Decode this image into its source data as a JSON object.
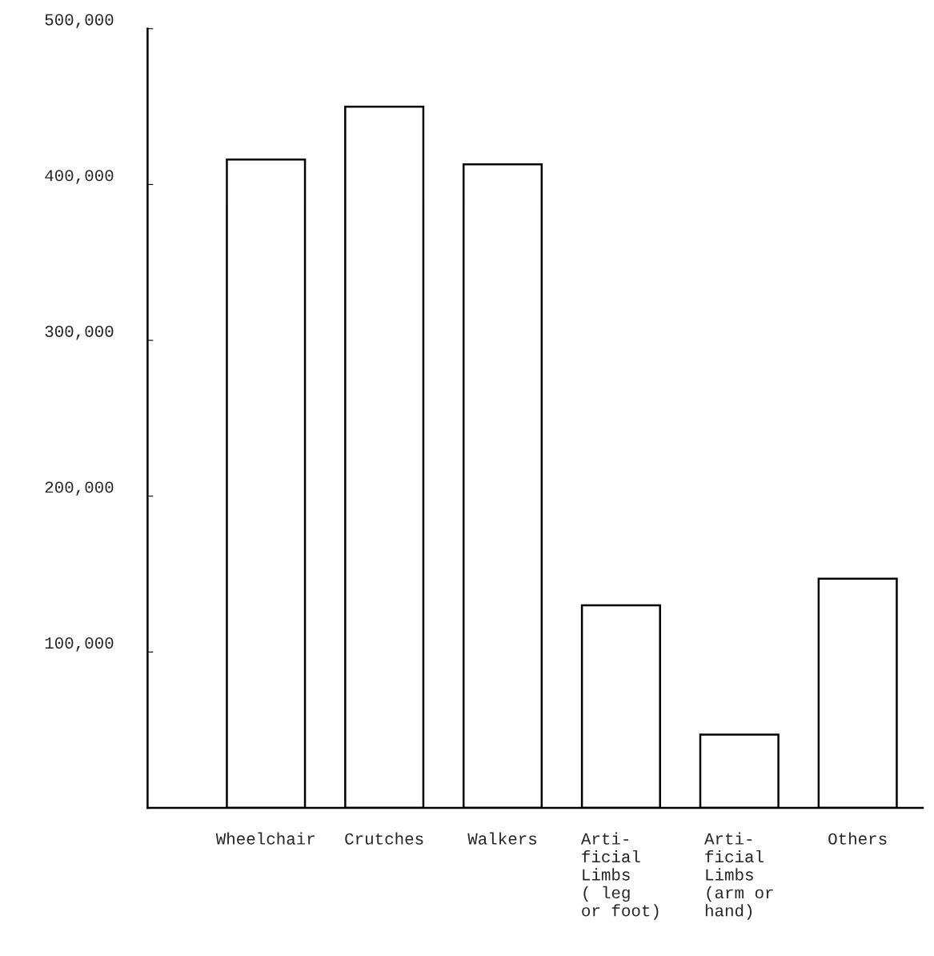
{
  "chart_data": {
    "type": "bar",
    "categories": [
      "Wheelchair",
      "Crutches",
      "Walkers",
      "Arti-\nficial\nLimbs\n( leg\nor foot)",
      "Arti-\nficial\nLimbs\n(arm or\nhand)",
      "Others"
    ],
    "values": [
      416000,
      450000,
      413000,
      130000,
      47000,
      147000
    ],
    "color": "#ffffff",
    "ylim": [
      0,
      500000
    ],
    "yticks": [
      {
        "value": 100000,
        "label": "100,000"
      },
      {
        "value": 200000,
        "label": "200,000"
      },
      {
        "value": 300000,
        "label": "300,000"
      },
      {
        "value": 400000,
        "label": "400,000"
      },
      {
        "value": 500000,
        "label": "500,000"
      }
    ],
    "grid": false,
    "legend": false
  }
}
